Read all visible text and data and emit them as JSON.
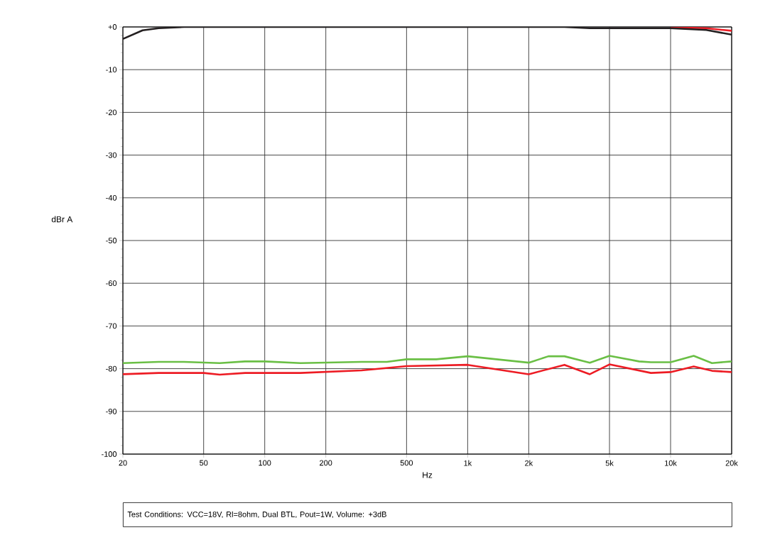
{
  "chart_data": {
    "type": "line",
    "xlabel": "Hz",
    "ylabel": "dBr A",
    "log": "x",
    "grid": true,
    "marker": "none",
    "line_style": "solid",
    "xlim": [
      20,
      20000
    ],
    "ylim": [
      -100,
      0
    ],
    "xticks": [
      20,
      50,
      100,
      200,
      500,
      {
        "value": 1000,
        "label": "1k"
      },
      {
        "value": 2000,
        "label": "2k"
      },
      {
        "value": 5000,
        "label": "5k"
      },
      {
        "value": 10000,
        "label": "10k"
      },
      {
        "value": 20000,
        "label": "20k"
      }
    ],
    "yticks": [
      {
        "value": 0,
        "label": "+0"
      },
      -10,
      -20,
      -30,
      -40,
      -50,
      -60,
      -70,
      -80,
      -90,
      -100
    ],
    "series": [
      {
        "color": "#ed1c24",
        "x": [
          10000,
          15000,
          20000
        ],
        "values": [
          -0.1,
          -0.3,
          -0.9
        ]
      },
      {
        "color": "#231f20",
        "x": [
          20,
          25,
          30,
          40,
          100,
          1000,
          3000,
          4000,
          10000,
          15000,
          20000
        ],
        "values": [
          -2.8,
          -0.8,
          -0.3,
          0,
          0,
          0,
          0,
          -0.3,
          -0.3,
          -0.7,
          -1.8
        ]
      },
      {
        "color": "#6abf45",
        "x": [
          20,
          30,
          40,
          60,
          80,
          100,
          150,
          300,
          400,
          500,
          700,
          1000,
          2000,
          2500,
          3000,
          4000,
          5000,
          7000,
          8000,
          10000,
          13000,
          16000,
          20000
        ],
        "values": [
          -78.7,
          -78.4,
          -78.4,
          -78.7,
          -78.3,
          -78.3,
          -78.7,
          -78.4,
          -78.4,
          -77.8,
          -77.8,
          -77.1,
          -78.6,
          -77.1,
          -77.1,
          -78.6,
          -77.0,
          -78.3,
          -78.5,
          -78.5,
          -77.0,
          -78.7,
          -78.3
        ]
      },
      {
        "color": "#ed1c24",
        "x": [
          20,
          30,
          50,
          60,
          80,
          150,
          300,
          500,
          1000,
          2000,
          3000,
          4000,
          5000,
          8000,
          10000,
          13000,
          16000,
          20000
        ],
        "values": [
          -81.3,
          -81.0,
          -81.0,
          -81.4,
          -81.0,
          -81.0,
          -80.4,
          -79.4,
          -79.1,
          -81.3,
          -79.1,
          -81.3,
          -79.0,
          -81.0,
          -80.8,
          -79.5,
          -80.5,
          -80.8
        ]
      }
    ],
    "annotations": [
      "Test Conditions: VCC=18V, Rl=8ohm, Dual BTL, Pout=1W, Volume: +3dB"
    ]
  }
}
